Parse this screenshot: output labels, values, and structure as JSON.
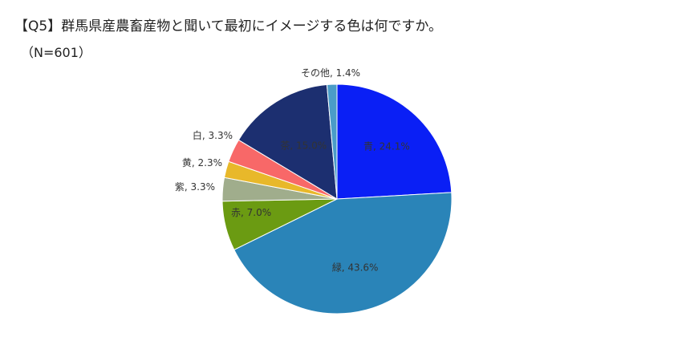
{
  "chart_data": {
    "type": "pie",
    "title": "【Q5】群馬県産農畜産物と聞いて最初にイメージする色は何ですか。",
    "subtitle": "（N=601）",
    "slices": [
      {
        "name": "青",
        "value": 24.1,
        "label": "青, 24.1%",
        "color": "#0a1ff5"
      },
      {
        "name": "緑",
        "value": 43.6,
        "label": "緑, 43.6%",
        "color": "#2a84b8"
      },
      {
        "name": "赤",
        "value": 7.0,
        "label": "赤, 7.0%",
        "color": "#6b9b12"
      },
      {
        "name": "紫",
        "value": 3.3,
        "label": "紫, 3.3%",
        "color": "#a0ad8c"
      },
      {
        "name": "黄",
        "value": 2.3,
        "label": "黄, 2.3%",
        "color": "#e8b82a"
      },
      {
        "name": "白",
        "value": 3.3,
        "label": "白, 3.3%",
        "color": "#f86868"
      },
      {
        "name": "茶",
        "value": 15.0,
        "label": "茶, 15.0%",
        "color": "#1c2f70"
      },
      {
        "name": "その他",
        "value": 1.4,
        "label": "その他, 1.4%",
        "color": "#4a9cc8"
      }
    ]
  }
}
